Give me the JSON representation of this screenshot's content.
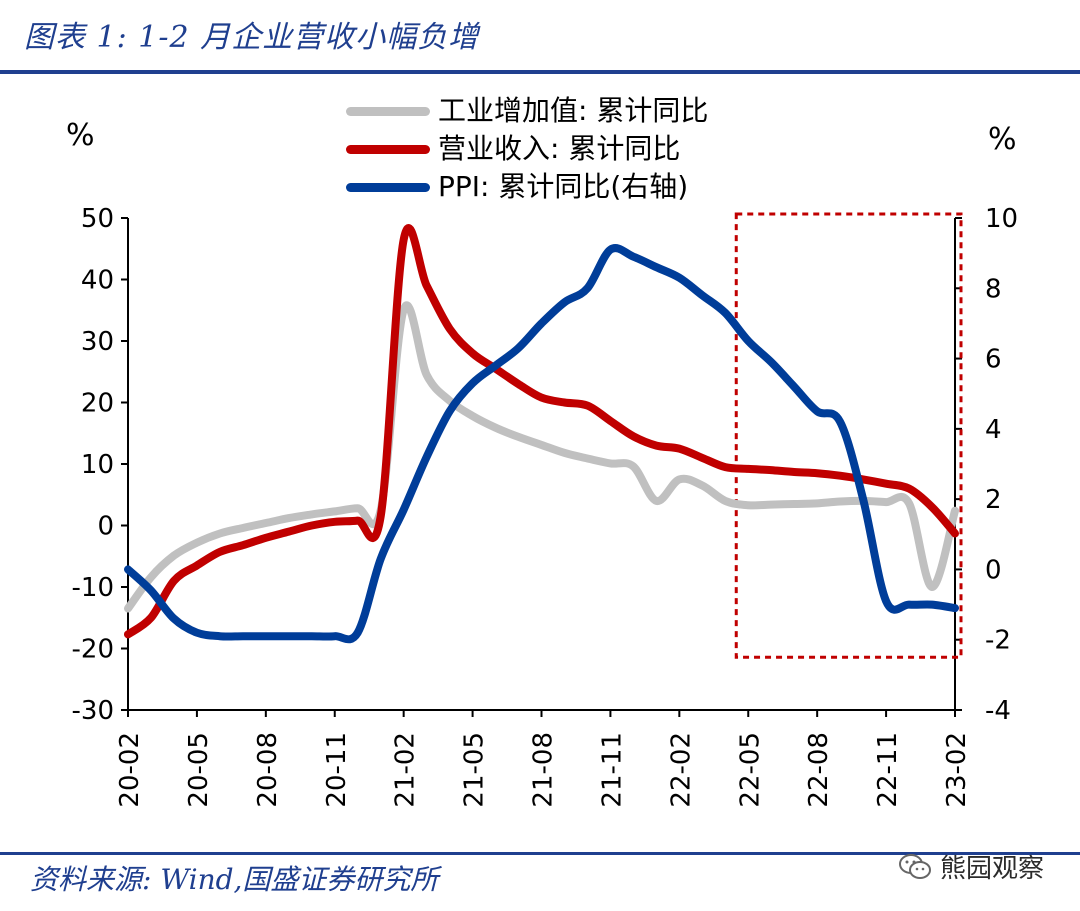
{
  "header": {
    "title": "图表 1:  1-2 月企业营收小幅负增"
  },
  "footer": {
    "source": "资料来源:  Wind,国盛证券研究所",
    "watermark": "熊园观察"
  },
  "units": {
    "left": "%",
    "right": "%"
  },
  "colors": {
    "accent": "#1f3f8f",
    "highlight": "#c00000"
  },
  "chart_data": {
    "type": "line",
    "x_tick_labels": [
      "20-02",
      "20-05",
      "20-08",
      "20-11",
      "21-02",
      "21-05",
      "21-08",
      "21-11",
      "22-02",
      "22-05",
      "22-08",
      "22-11",
      "23-02"
    ],
    "y_left": {
      "ticks": [
        -30,
        -20,
        -10,
        0,
        10,
        20,
        30,
        40,
        50
      ],
      "range": [
        -30,
        50
      ],
      "unit": "%"
    },
    "y_right": {
      "ticks": [
        -4,
        -2,
        0,
        2,
        4,
        6,
        8,
        10
      ],
      "range": [
        -4,
        10
      ],
      "unit": "%"
    },
    "highlight_box": {
      "x_from": "22-05",
      "x_to": "23-02",
      "y_right_from": -2.5,
      "y_right_to": 10,
      "style": "dashed",
      "color": "#c00000"
    },
    "series": [
      {
        "name": "工业增加值: 累计同比",
        "axis": "left",
        "color": "#c0c0c0",
        "x": [
          "20-02",
          "20-03",
          "20-04",
          "20-05",
          "20-06",
          "20-07",
          "20-08",
          "20-09",
          "20-10",
          "20-11",
          "20-12",
          "21-01",
          "21-02",
          "21-03",
          "21-04",
          "21-05",
          "21-06",
          "21-07",
          "21-08",
          "21-09",
          "21-10",
          "21-11",
          "21-12",
          "22-01",
          "22-02",
          "22-03",
          "22-04",
          "22-05",
          "22-06",
          "22-07",
          "22-08",
          "22-09",
          "22-10",
          "22-11",
          "22-12",
          "23-01",
          "23-02"
        ],
        "values": [
          -13.5,
          -8.4,
          -4.9,
          -2.8,
          -1.3,
          -0.4,
          0.4,
          1.2,
          1.8,
          2.3,
          2.8,
          2.5,
          35.1,
          24.5,
          20.3,
          17.8,
          15.9,
          14.4,
          13.1,
          11.8,
          10.9,
          10.1,
          9.6,
          4.0,
          7.5,
          6.5,
          4.0,
          3.3,
          3.4,
          3.5,
          3.6,
          3.9,
          4.0,
          3.8,
          3.6,
          -10.0,
          2.4
        ]
      },
      {
        "name": "营业收入: 累计同比",
        "axis": "left",
        "color": "#c00000",
        "x": [
          "20-02",
          "20-03",
          "20-04",
          "20-05",
          "20-06",
          "20-07",
          "20-08",
          "20-09",
          "20-10",
          "20-11",
          "20-12",
          "21-01",
          "21-02",
          "21-03",
          "21-04",
          "21-05",
          "21-06",
          "21-07",
          "21-08",
          "21-09",
          "21-10",
          "21-11",
          "21-12",
          "22-01",
          "22-02",
          "22-03",
          "22-04",
          "22-05",
          "22-06",
          "22-07",
          "22-08",
          "22-09",
          "22-10",
          "22-11",
          "22-12",
          "23-01",
          "23-02"
        ],
        "values": [
          -17.7,
          -15.0,
          -9.0,
          -6.5,
          -4.3,
          -3.2,
          -2.0,
          -1.0,
          0.0,
          0.6,
          0.8,
          1.5,
          46.5,
          39.0,
          32.0,
          28.0,
          25.5,
          23.0,
          20.8,
          20.0,
          19.5,
          17.0,
          14.5,
          13.0,
          12.5,
          11.0,
          9.5,
          9.2,
          9.0,
          8.7,
          8.5,
          8.1,
          7.5,
          6.8,
          6.0,
          3.0,
          -1.3
        ]
      },
      {
        "name": "PPI: 累计同比(右轴)",
        "axis": "right",
        "color": "#003d99",
        "x": [
          "20-02",
          "20-03",
          "20-04",
          "20-05",
          "20-06",
          "20-07",
          "20-08",
          "20-09",
          "20-10",
          "20-11",
          "20-12",
          "21-01",
          "21-02",
          "21-03",
          "21-04",
          "21-05",
          "21-06",
          "21-07",
          "21-08",
          "21-09",
          "21-10",
          "21-11",
          "21-12",
          "22-01",
          "22-02",
          "22-03",
          "22-04",
          "22-05",
          "22-06",
          "22-07",
          "22-08",
          "22-09",
          "22-10",
          "22-11",
          "22-12",
          "23-01",
          "23-02"
        ],
        "values": [
          0.0,
          -0.6,
          -1.4,
          -1.8,
          -1.9,
          -1.9,
          -1.9,
          -1.9,
          -1.9,
          -1.9,
          -1.8,
          0.3,
          1.7,
          3.2,
          4.5,
          5.3,
          5.8,
          6.3,
          7.0,
          7.6,
          8.0,
          9.1,
          8.9,
          8.6,
          8.3,
          7.8,
          7.3,
          6.5,
          5.9,
          5.2,
          4.5,
          4.2,
          2.0,
          -0.9,
          -1.0,
          -1.0,
          -1.1
        ]
      }
    ]
  }
}
